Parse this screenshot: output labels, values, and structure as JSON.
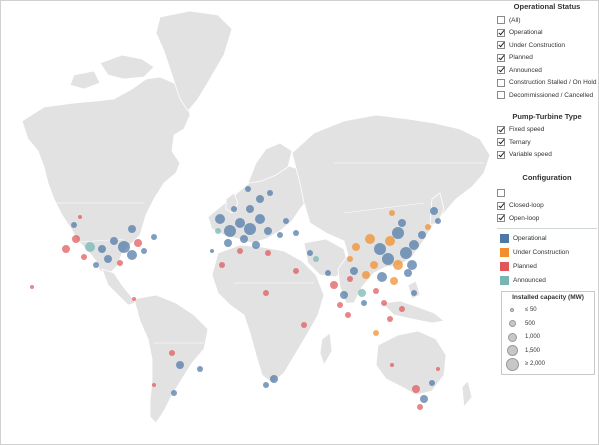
{
  "legend": {
    "operational_status": {
      "title": "Operational Status",
      "items": [
        {
          "label": "(All)",
          "checked": false
        },
        {
          "label": "Operational",
          "checked": true
        },
        {
          "label": "Under Construction",
          "checked": true
        },
        {
          "label": "Planned",
          "checked": true
        },
        {
          "label": "Announced",
          "checked": true
        },
        {
          "label": "Construction Stalled / On Hold",
          "checked": false
        },
        {
          "label": "Decommissioned / Cancelled",
          "checked": false
        }
      ]
    },
    "pump_turbine_type": {
      "title": "Pump-Turbine Type",
      "items": [
        {
          "label": "Fixed speed",
          "checked": true
        },
        {
          "label": "Ternary",
          "checked": true
        },
        {
          "label": "Variable speed",
          "checked": true
        }
      ]
    },
    "configuration": {
      "title": "Configuration",
      "items": [
        {
          "label": "",
          "checked": false
        },
        {
          "label": "Closed-loop",
          "checked": true
        },
        {
          "label": "Open-loop",
          "checked": true
        }
      ]
    },
    "status_colors": [
      {
        "label": "Operational",
        "color": "#4e79a7"
      },
      {
        "label": "Under Construction",
        "color": "#f28e2b"
      },
      {
        "label": "Planned",
        "color": "#e15759"
      },
      {
        "label": "Announced",
        "color": "#76b7b2"
      }
    ],
    "capacity": {
      "title": "Installed capacity (MW)",
      "items": [
        "≤ 50",
        "500",
        "1,000",
        "1,500",
        "≥ 2,000"
      ]
    }
  }
}
